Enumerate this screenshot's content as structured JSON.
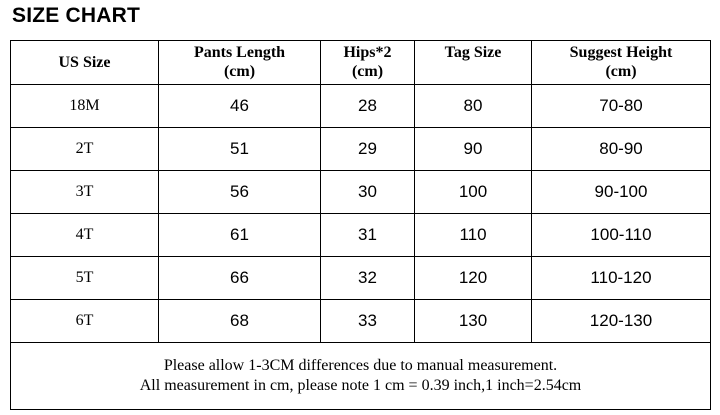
{
  "title": "SIZE CHART",
  "headers": [
    {
      "line1": "US Size",
      "line2": ""
    },
    {
      "line1": "Pants Length",
      "line2": "(cm)"
    },
    {
      "line1": "Hips*2",
      "line2": "(cm)"
    },
    {
      "line1": "Tag Size",
      "line2": ""
    },
    {
      "line1": "Suggest Height",
      "line2": "(cm)"
    }
  ],
  "rows": [
    [
      "18M",
      "46",
      "28",
      "80",
      "70-80"
    ],
    [
      "2T",
      "51",
      "29",
      "90",
      "80-90"
    ],
    [
      "3T",
      "56",
      "30",
      "100",
      "90-100"
    ],
    [
      "4T",
      "61",
      "31",
      "110",
      "100-110"
    ],
    [
      "5T",
      "66",
      "32",
      "120",
      "110-120"
    ],
    [
      "6T",
      "68",
      "33",
      "130",
      "120-130"
    ]
  ],
  "notes": [
    "Please allow 1-3CM differences due to manual measurement.",
    "All measurement in cm, please note 1 cm = 0.39 inch,1 inch=2.54cm"
  ]
}
